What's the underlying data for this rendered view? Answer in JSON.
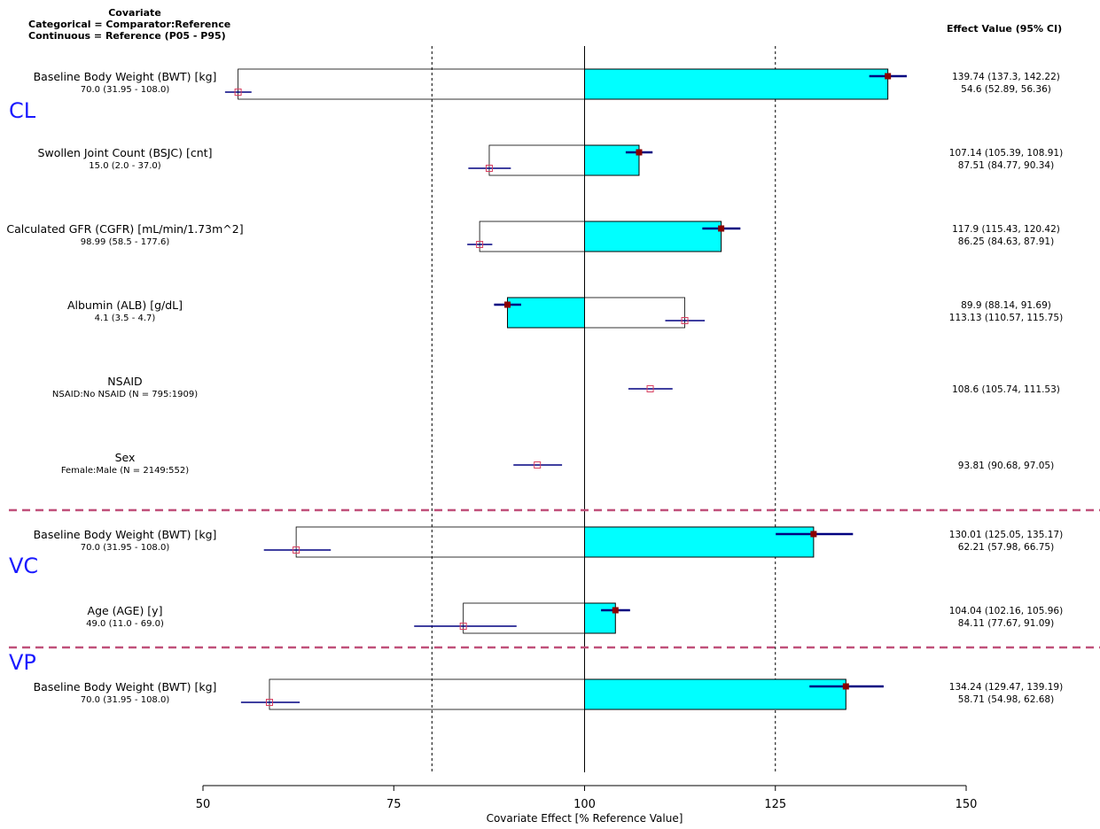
{
  "header": {
    "left_line1": "Covariate",
    "left_line2": "Categorical = Comparator:Reference",
    "left_line3": "Continuous = Reference (P05 - P95)",
    "right": "Effect Value (95% CI)"
  },
  "colors": {
    "fill": "#00ffff",
    "ci": "#000080",
    "point": "#8b0000",
    "separator": "#c0507a",
    "group_label": "#1a1aff"
  },
  "chart_data": {
    "type": "bar",
    "xlabel": "Covariate Effect [% Reference Value]",
    "xlim": [
      50,
      150
    ],
    "reference_line": 100,
    "dashed_lines": [
      80,
      125
    ],
    "xticks": [
      50,
      75,
      100,
      125,
      150
    ],
    "groups": [
      {
        "name": "CL",
        "rows": [
          0,
          1,
          2,
          3,
          4,
          5
        ]
      },
      {
        "name": "VC",
        "rows": [
          6,
          7
        ]
      },
      {
        "name": "VP",
        "rows": [
          8
        ]
      }
    ],
    "rows": [
      {
        "label": "Baseline Body Weight (BWT) [kg]",
        "sub": "70.0 (31.95 - 108.0)",
        "kind": "continuous",
        "high": {
          "est": 139.74,
          "lo": 137.3,
          "hi": 142.22,
          "text": "139.74 (137.3, 142.22)"
        },
        "low": {
          "est": 54.6,
          "lo": 52.89,
          "hi": 56.36,
          "text": "54.6 (52.89, 56.36)"
        }
      },
      {
        "label": "Swollen Joint Count (BSJC) [cnt]",
        "sub": "15.0 (2.0 - 37.0)",
        "kind": "continuous",
        "high": {
          "est": 107.14,
          "lo": 105.39,
          "hi": 108.91,
          "text": "107.14 (105.39, 108.91)"
        },
        "low": {
          "est": 87.51,
          "lo": 84.77,
          "hi": 90.34,
          "text": "87.51 (84.77, 90.34)"
        }
      },
      {
        "label": "Calculated GFR (CGFR) [mL/min/1.73m^2]",
        "sub": "98.99 (58.5 - 177.6)",
        "kind": "continuous",
        "high": {
          "est": 117.9,
          "lo": 115.43,
          "hi": 120.42,
          "text": "117.9 (115.43, 120.42)"
        },
        "low": {
          "est": 86.25,
          "lo": 84.63,
          "hi": 87.91,
          "text": "86.25 (84.63, 87.91)"
        }
      },
      {
        "label": "Albumin (ALB) [g/dL]",
        "sub": "4.1 (3.5 - 4.7)",
        "kind": "continuous",
        "high": {
          "est": 89.9,
          "lo": 88.14,
          "hi": 91.69,
          "text": "89.9 (88.14, 91.69)"
        },
        "low": {
          "est": 113.13,
          "lo": 110.57,
          "hi": 115.75,
          "text": "113.13 (110.57, 115.75)"
        }
      },
      {
        "label": "NSAID",
        "sub": "NSAID:No NSAID (N = 795:1909)",
        "kind": "categorical",
        "point": {
          "est": 108.6,
          "lo": 105.74,
          "hi": 111.53,
          "text": "108.6 (105.74, 111.53)"
        }
      },
      {
        "label": "Sex",
        "sub": "Female:Male (N = 2149:552)",
        "kind": "categorical",
        "point": {
          "est": 93.81,
          "lo": 90.68,
          "hi": 97.05,
          "text": "93.81 (90.68, 97.05)"
        }
      },
      {
        "label": "Baseline Body Weight (BWT) [kg]",
        "sub": "70.0 (31.95 - 108.0)",
        "kind": "continuous",
        "high": {
          "est": 130.01,
          "lo": 125.05,
          "hi": 135.17,
          "text": "130.01 (125.05, 135.17)"
        },
        "low": {
          "est": 62.21,
          "lo": 57.98,
          "hi": 66.75,
          "text": "62.21 (57.98, 66.75)"
        }
      },
      {
        "label": "Age (AGE) [y]",
        "sub": "49.0 (11.0 - 69.0)",
        "kind": "continuous",
        "high": {
          "est": 104.04,
          "lo": 102.16,
          "hi": 105.96,
          "text": "104.04 (102.16, 105.96)"
        },
        "low": {
          "est": 84.11,
          "lo": 77.67,
          "hi": 91.09,
          "text": "84.11 (77.67, 91.09)"
        }
      },
      {
        "label": "Baseline Body Weight (BWT) [kg]",
        "sub": "70.0 (31.95 - 108.0)",
        "kind": "continuous",
        "high": {
          "est": 134.24,
          "lo": 129.47,
          "hi": 139.19,
          "text": "134.24 (129.47, 139.19)"
        },
        "low": {
          "est": 58.71,
          "lo": 54.98,
          "hi": 62.68,
          "text": "58.71 (54.98, 62.68)"
        }
      }
    ]
  }
}
